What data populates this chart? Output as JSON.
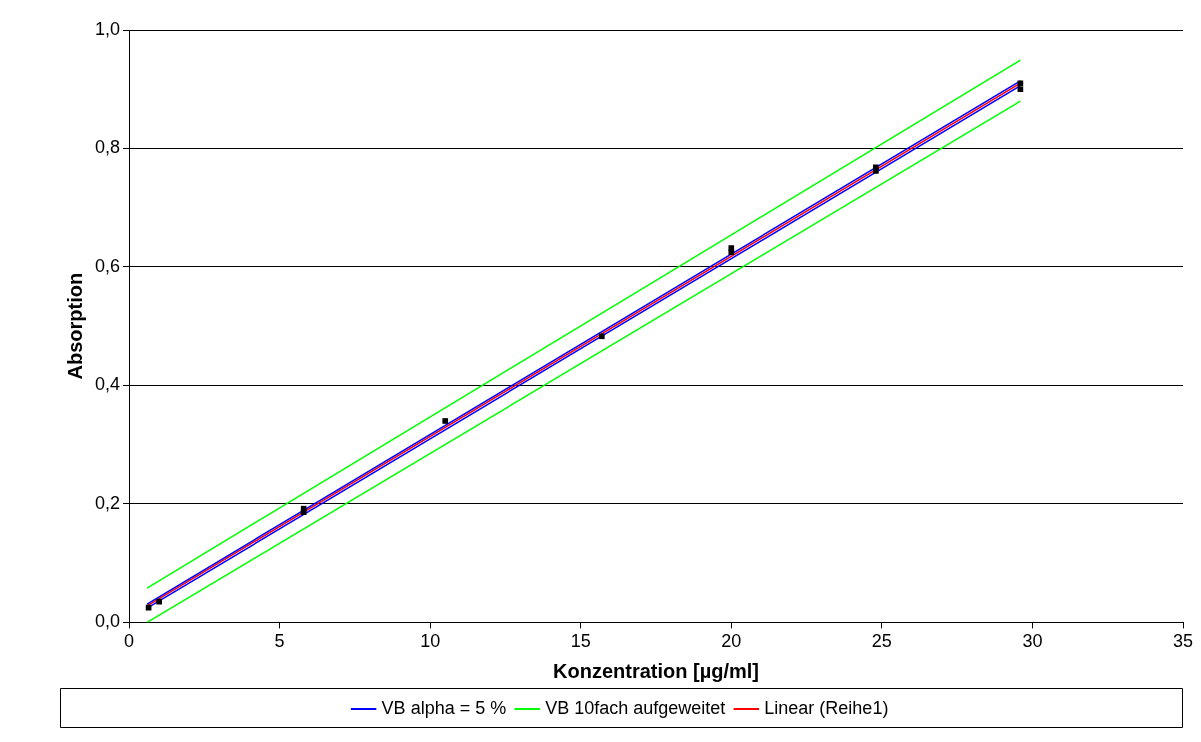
{
  "chart_data": {
    "type": "scatter",
    "xlabel": "Konzentration [µg/ml]",
    "ylabel": "Absorption",
    "xlim": [
      0,
      35
    ],
    "xticks": [
      0,
      5,
      10,
      15,
      20,
      25,
      30,
      35
    ],
    "ylim": [
      0,
      1
    ],
    "yticks": [
      {
        "value": 0,
        "label": "0,0"
      },
      {
        "value": 0.2,
        "label": "0,2"
      },
      {
        "value": 0.4,
        "label": "0,4"
      },
      {
        "value": 0.6,
        "label": "0,6"
      },
      {
        "value": 0.8,
        "label": "0,8"
      },
      {
        "value": 1,
        "label": "1,0"
      }
    ],
    "grid": "y",
    "legend": "bottom",
    "series": [
      {
        "type": "line",
        "name": "VB alpha = 5 %",
        "color": "#0000ff",
        "marker": "none",
        "x": [
          0.6,
          29.6
        ],
        "values": [
          0.031,
          0.914
        ]
      },
      {
        "type": "line",
        "color": "#0000ff",
        "marker": "none",
        "x": [
          0.6,
          29.6
        ],
        "values": [
          0.024,
          0.906
        ]
      },
      {
        "type": "line",
        "name": "VB 10fach aufgeweitet",
        "color": "#00ff00",
        "marker": "none",
        "x": [
          0.6,
          29.6
        ],
        "values": [
          0.058,
          0.949
        ]
      },
      {
        "type": "line",
        "color": "#00ff00",
        "marker": "none",
        "x": [
          0.6,
          29.6
        ],
        "values": [
          0.0,
          0.88
        ]
      },
      {
        "type": "line",
        "name": "Linear (Reihe1)",
        "color": "#ff0000",
        "marker": "none",
        "x": [
          0.6,
          29.6
        ],
        "values": [
          0.028,
          0.91
        ]
      },
      {
        "color": "#000000",
        "marker": "square",
        "x": [
          0.65,
          1,
          5.8,
          5.8,
          10.5,
          15.7,
          20,
          20,
          24.8,
          24.8,
          29.6,
          29.6
        ],
        "values": [
          0.025,
          0.035,
          0.192,
          0.186,
          0.34,
          0.483,
          0.632,
          0.625,
          0.768,
          0.762,
          0.91,
          0.9
        ]
      }
    ]
  }
}
